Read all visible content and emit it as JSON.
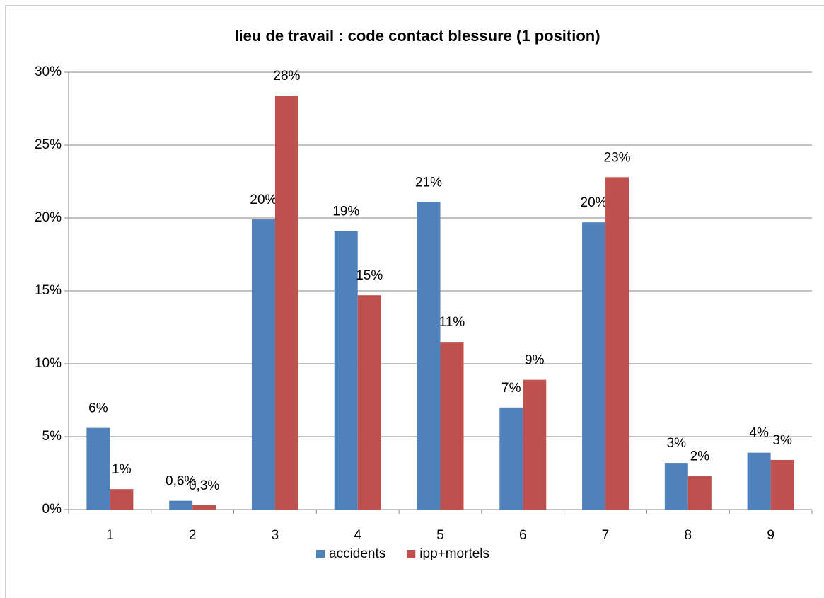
{
  "chart_data": {
    "type": "bar",
    "title": "lieu de travail : code contact blessure (1 position)",
    "categories": [
      "1",
      "2",
      "3",
      "4",
      "5",
      "6",
      "7",
      "8",
      "9"
    ],
    "series": [
      {
        "name": "accidents",
        "color": "#4f81bd",
        "values": [
          5.6,
          0.6,
          19.9,
          19.1,
          21.1,
          7.0,
          19.7,
          3.2,
          3.9
        ],
        "value_labels": [
          "6%",
          "0,6%",
          "20%",
          "19%",
          "21%",
          "7%",
          "20%",
          "3%",
          "4%"
        ]
      },
      {
        "name": "ipp+mortels",
        "color": "#c0504d",
        "values": [
          1.4,
          0.3,
          28.4,
          14.7,
          11.5,
          8.9,
          22.8,
          2.3,
          3.4
        ],
        "value_labels": [
          "1%",
          "0,3%",
          "28%",
          "15%",
          "11%",
          "9%",
          "23%",
          "2%",
          "3%"
        ]
      }
    ],
    "ylim": [
      0,
      30
    ],
    "yticks": [
      {
        "value": 0,
        "label": "0%"
      },
      {
        "value": 5,
        "label": "5%"
      },
      {
        "value": 10,
        "label": "10%"
      },
      {
        "value": 15,
        "label": "15%"
      },
      {
        "value": 20,
        "label": "20%"
      },
      {
        "value": 25,
        "label": "25%"
      },
      {
        "value": 30,
        "label": "30%"
      }
    ],
    "grid": true,
    "legend": "bottom"
  }
}
